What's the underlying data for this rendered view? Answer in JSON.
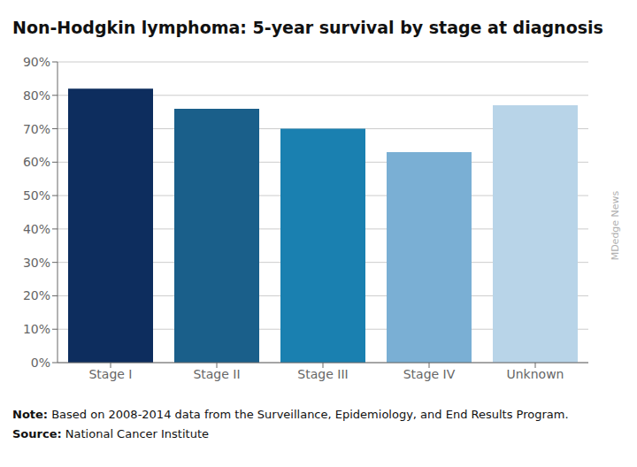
{
  "chart_data": {
    "type": "bar",
    "title": "Non-Hodgkin lymphoma: 5-year survival by stage at diagnosis",
    "categories": [
      "Stage I",
      "Stage II",
      "Stage III",
      "Stage IV",
      "Unknown"
    ],
    "values": [
      82,
      76,
      70,
      63,
      77
    ],
    "colors": [
      "#0d2d5e",
      "#1a5f8a",
      "#1a80b0",
      "#7aafd4",
      "#b8d4e8"
    ],
    "ylim": [
      0,
      90
    ],
    "yticks": [
      {
        "value": 0,
        "label": "0%"
      },
      {
        "value": 10,
        "label": "10%"
      },
      {
        "value": 20,
        "label": "20%"
      },
      {
        "value": 30,
        "label": "30%"
      },
      {
        "value": 40,
        "label": "40%"
      },
      {
        "value": 50,
        "label": "50%"
      },
      {
        "value": 60,
        "label": "60%"
      },
      {
        "value": 70,
        "label": "70%"
      },
      {
        "value": 80,
        "label": "80%"
      },
      {
        "value": 90,
        "label": "90%"
      }
    ],
    "grid": true,
    "annotations": [
      "Note: Based on 2008-2014 data from the Surveillance, Epidemiology, and End Results Program.",
      "Source: National Cancer Institute",
      "MDedge News"
    ]
  }
}
